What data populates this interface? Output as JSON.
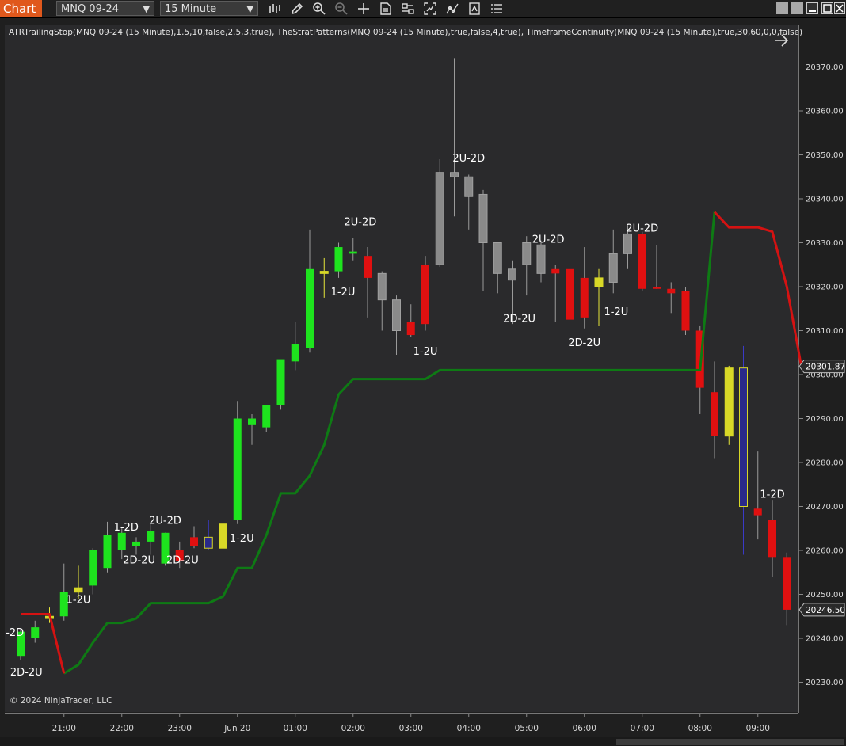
{
  "toolbar": {
    "chart_tab": "Chart",
    "instrument": "MNQ 09-24",
    "interval": "15 Minute",
    "icons": [
      "bars-type-icon",
      "draw-pencil-icon",
      "zoom-in-icon",
      "zoom-out-icon",
      "crosshair-icon",
      "data-box-icon",
      "properties-icon",
      "strategies-icon",
      "indicators-icon",
      "templates-icon",
      "menu-list-icon"
    ]
  },
  "window_icons": [
    "restore-icon",
    "restore-icon",
    "minimize-icon",
    "maximize-icon",
    "close-icon"
  ],
  "indicator_label": "ATRTrailingStop(MNQ 09-24 (15 Minute),1.5,10,false,2.5,3,true), TheStratPatterns(MNQ 09-24 (15 Minute),true,false,4,true), TimeframeContinuity(MNQ 09-24 (15 Minute),true,30,60,0,0,false)",
  "copyright": "© 2024 NinjaTrader, LLC",
  "colors": {
    "up": "#1ee31e",
    "down": "#e01010",
    "inside": "#d8d827",
    "outside": "#2a2a8a",
    "neutral": "#8a8a8a",
    "stop_long": "#0e7a14",
    "stop_short": "#d51212",
    "accent": "#e0581c"
  },
  "chart_data": {
    "type": "candlestick",
    "instrument": "MNQ 09-24",
    "interval": "15 Minute",
    "ylim": [
      20226,
      20378
    ],
    "y_ticks": [
      20230,
      20240,
      20250,
      20260,
      20270,
      20280,
      20290,
      20300,
      20310,
      20320,
      20330,
      20340,
      20350,
      20360,
      20370
    ],
    "y_tick_labels": [
      "20230.00",
      "20240.00",
      "20250.00",
      "20260.00",
      "20270.00",
      "20280.00",
      "20290.00",
      "20300.00",
      "20310.00",
      "20320.00",
      "20330.00",
      "20340.00",
      "20350.00",
      "20360.00",
      "20370.00"
    ],
    "x_ticks": [
      {
        "bar": 3,
        "label": "21:00"
      },
      {
        "bar": 7,
        "label": "22:00"
      },
      {
        "bar": 11,
        "label": "23:00"
      },
      {
        "bar": 15,
        "label": "Jun 20"
      },
      {
        "bar": 19,
        "label": "01:00"
      },
      {
        "bar": 23,
        "label": "02:00"
      },
      {
        "bar": 27,
        "label": "03:00"
      },
      {
        "bar": 31,
        "label": "04:00"
      },
      {
        "bar": 35,
        "label": "05:00"
      },
      {
        "bar": 39,
        "label": "06:00"
      },
      {
        "bar": 43,
        "label": "07:00"
      },
      {
        "bar": 47,
        "label": "08:00"
      },
      {
        "bar": 51,
        "label": "09:00"
      }
    ],
    "candles": [
      {
        "o": 20236,
        "h": 20242,
        "l": 20235,
        "c": 20241.5,
        "k": "up"
      },
      {
        "o": 20240,
        "h": 20244,
        "l": 20239,
        "c": 20242.5,
        "k": "up"
      },
      {
        "o": 20244.5,
        "h": 20247,
        "l": 20243.5,
        "c": 20245,
        "k": "inside"
      },
      {
        "o": 20245,
        "h": 20257,
        "l": 20244,
        "c": 20250.5,
        "k": "up"
      },
      {
        "o": 20250.5,
        "h": 20256.5,
        "l": 20249,
        "c": 20251.5,
        "k": "inside"
      },
      {
        "o": 20252,
        "h": 20260.5,
        "l": 20250,
        "c": 20260,
        "k": "up"
      },
      {
        "o": 20256,
        "h": 20266.5,
        "l": 20255,
        "c": 20263.5,
        "k": "up"
      },
      {
        "o": 20260,
        "h": 20265,
        "l": 20258,
        "c": 20264,
        "k": "up"
      },
      {
        "o": 20261,
        "h": 20263,
        "l": 20259,
        "c": 20262,
        "k": "up"
      },
      {
        "o": 20262,
        "h": 20266,
        "l": 20259,
        "c": 20264.5,
        "k": "up"
      },
      {
        "o": 20257,
        "h": 20264,
        "l": 20256.5,
        "c": 20264,
        "k": "up"
      },
      {
        "o": 20260,
        "h": 20262,
        "l": 20256,
        "c": 20257.5,
        "k": "down"
      },
      {
        "o": 20263,
        "h": 20265.5,
        "l": 20260.5,
        "c": 20261,
        "k": "down"
      },
      {
        "o": 20263,
        "h": 20267,
        "l": 20260,
        "c": 20260.5,
        "k": "outside"
      },
      {
        "o": 20260.5,
        "h": 20267,
        "l": 20260,
        "c": 20266,
        "k": "inside"
      },
      {
        "o": 20267,
        "h": 20294,
        "l": 20266,
        "c": 20290,
        "k": "up"
      },
      {
        "o": 20288.5,
        "h": 20291,
        "l": 20284,
        "c": 20290,
        "k": "up"
      },
      {
        "o": 20288,
        "h": 20293,
        "l": 20287,
        "c": 20293,
        "k": "up"
      },
      {
        "o": 20293,
        "h": 20302,
        "l": 20292,
        "c": 20303.5,
        "k": "up"
      },
      {
        "o": 20303,
        "h": 20312,
        "l": 20301,
        "c": 20307,
        "k": "up"
      },
      {
        "o": 20306,
        "h": 20333,
        "l": 20305,
        "c": 20324,
        "k": "up"
      },
      {
        "o": 20323,
        "h": 20326.5,
        "l": 20317.5,
        "c": 20323.5,
        "k": "inside"
      },
      {
        "o": 20323.5,
        "h": 20330,
        "l": 20322,
        "c": 20329,
        "k": "up"
      },
      {
        "o": 20327.5,
        "h": 20331,
        "l": 20326,
        "c": 20328,
        "k": "up"
      },
      {
        "o": 20327,
        "h": 20329,
        "l": 20313,
        "c": 20322,
        "k": "down"
      },
      {
        "o": 20323,
        "h": 20323.5,
        "l": 20310,
        "c": 20317,
        "k": "neutral"
      },
      {
        "o": 20317,
        "h": 20318,
        "l": 20304.5,
        "c": 20310,
        "k": "neutral"
      },
      {
        "o": 20312,
        "h": 20316,
        "l": 20308.5,
        "c": 20309,
        "k": "down"
      },
      {
        "o": 20325,
        "h": 20327,
        "l": 20310,
        "c": 20311.5,
        "k": "down"
      },
      {
        "o": 20325,
        "h": 20349,
        "l": 20324.5,
        "c": 20346,
        "k": "neutral"
      },
      {
        "o": 20346,
        "h": 20372,
        "l": 20336,
        "c": 20345,
        "k": "neutral"
      },
      {
        "o": 20345,
        "h": 20345.5,
        "l": 20333,
        "c": 20340.5,
        "k": "neutral"
      },
      {
        "o": 20341,
        "h": 20342,
        "l": 20319,
        "c": 20330,
        "k": "neutral"
      },
      {
        "o": 20330,
        "h": 20330,
        "l": 20318.5,
        "c": 20323,
        "k": "neutral"
      },
      {
        "o": 20324,
        "h": 20326,
        "l": 20311.5,
        "c": 20321.5,
        "k": "neutral"
      },
      {
        "o": 20330,
        "h": 20331.5,
        "l": 20318,
        "c": 20325,
        "k": "neutral"
      },
      {
        "o": 20323,
        "h": 20330.5,
        "l": 20321,
        "c": 20329.5,
        "k": "neutral"
      },
      {
        "o": 20324,
        "h": 20325,
        "l": 20312,
        "c": 20323,
        "k": "down"
      },
      {
        "o": 20324,
        "h": 20324,
        "l": 20312,
        "c": 20312.5,
        "k": "down"
      },
      {
        "o": 20322,
        "h": 20329,
        "l": 20310.5,
        "c": 20313,
        "k": "down"
      },
      {
        "o": 20322,
        "h": 20324,
        "l": 20311,
        "c": 20320,
        "k": "inside"
      },
      {
        "o": 20321,
        "h": 20333,
        "l": 20318.5,
        "c": 20327.5,
        "k": "neutral"
      },
      {
        "o": 20327.5,
        "h": 20334,
        "l": 20324,
        "c": 20332,
        "k": "neutral"
      },
      {
        "o": 20332,
        "h": 20332.5,
        "l": 20319,
        "c": 20319.5,
        "k": "down"
      },
      {
        "o": 20320,
        "h": 20329.5,
        "l": 20319.5,
        "c": 20319.5,
        "k": "down"
      },
      {
        "o": 20319.5,
        "h": 20321,
        "l": 20314,
        "c": 20318.5,
        "k": "down"
      },
      {
        "o": 20319,
        "h": 20320,
        "l": 20309,
        "c": 20310,
        "k": "down"
      },
      {
        "o": 20310,
        "h": 20311,
        "l": 20291,
        "c": 20297,
        "k": "down"
      },
      {
        "o": 20296,
        "h": 20303,
        "l": 20281,
        "c": 20286,
        "k": "down"
      },
      {
        "o": 20286,
        "h": 20302,
        "l": 20284,
        "c": 20301.5,
        "k": "inside"
      },
      {
        "o": 20301.5,
        "h": 20306.5,
        "l": 20259,
        "c": 20270,
        "k": "outside"
      },
      {
        "o": 20269.5,
        "h": 20282.5,
        "l": 20262.5,
        "c": 20268,
        "k": "down"
      },
      {
        "o": 20267,
        "h": 20271.5,
        "l": 20254,
        "c": 20258.5,
        "k": "down"
      },
      {
        "o": 20258.5,
        "h": 20259.5,
        "l": 20243,
        "c": 20246.5,
        "k": "down"
      }
    ],
    "atr_trailing_stop": {
      "long": [
        null,
        null,
        null,
        20232,
        20234,
        20239,
        20243.5,
        20243.5,
        20244.5,
        20248,
        20248,
        20248,
        20248,
        20248,
        20249.5,
        20256,
        20256,
        20263.5,
        20273,
        20273,
        20277,
        20284,
        20295.5,
        20299,
        20299,
        20299,
        20299,
        20299,
        20299,
        20301,
        20301,
        20301,
        20301,
        20301,
        20301,
        20301,
        20301,
        20301,
        20301,
        20301,
        20301,
        20301,
        20301,
        20301,
        20301,
        20301,
        20301,
        20301,
        20337
      ],
      "short": [
        20245.5,
        20245.5,
        20245.5,
        20232,
        null,
        null,
        null,
        null,
        null,
        null,
        null,
        null,
        null,
        null,
        null,
        null,
        null,
        null,
        null,
        null,
        null,
        null,
        null,
        null,
        null,
        null,
        null,
        null,
        null,
        null,
        null,
        null,
        null,
        null,
        null,
        null,
        null,
        null,
        null,
        null,
        null,
        null,
        null,
        null,
        null,
        null,
        null,
        null,
        20337,
        20333.5,
        20333.5,
        20333.5,
        20332.5,
        20320,
        20302
      ]
    },
    "current_labels": [
      {
        "bar": 53,
        "value": 20301.87,
        "text": "20301.87",
        "color": "#e01010"
      },
      {
        "bar": 53,
        "value": 20246.5,
        "text": "20246.50",
        "color": "#e01010"
      }
    ],
    "pattern_labels": [
      {
        "bar": -0.4,
        "value": 20240.5,
        "text": "-2D"
      },
      {
        "bar": 0.4,
        "value": 20231.5,
        "text": "2D-2U"
      },
      {
        "bar": 4,
        "value": 20248,
        "text": "1-2U"
      },
      {
        "bar": 7.3,
        "value": 20264.5,
        "text": "1-2D"
      },
      {
        "bar": 10,
        "value": 20266,
        "text": "2U-2D"
      },
      {
        "bar": 8.2,
        "value": 20257,
        "text": "2D-2U"
      },
      {
        "bar": 11.2,
        "value": 20257,
        "text": "2D-2U"
      },
      {
        "bar": 15.3,
        "value": 20262,
        "text": "1-2U"
      },
      {
        "bar": 23.5,
        "value": 20334,
        "text": "2U-2D"
      },
      {
        "bar": 22.3,
        "value": 20318,
        "text": "1-2U"
      },
      {
        "bar": 28,
        "value": 20304.5,
        "text": "1-2U"
      },
      {
        "bar": 31,
        "value": 20348.5,
        "text": "2U-2D"
      },
      {
        "bar": 34.5,
        "value": 20312,
        "text": "2D-2U"
      },
      {
        "bar": 36.5,
        "value": 20330,
        "text": "2U-2D"
      },
      {
        "bar": 39,
        "value": 20306.5,
        "text": "2D-2U"
      },
      {
        "bar": 41.2,
        "value": 20313.5,
        "text": "1-2U"
      },
      {
        "bar": 43,
        "value": 20332.5,
        "text": "2U-2D"
      },
      {
        "bar": 52,
        "value": 20272,
        "text": "1-2D"
      }
    ]
  }
}
